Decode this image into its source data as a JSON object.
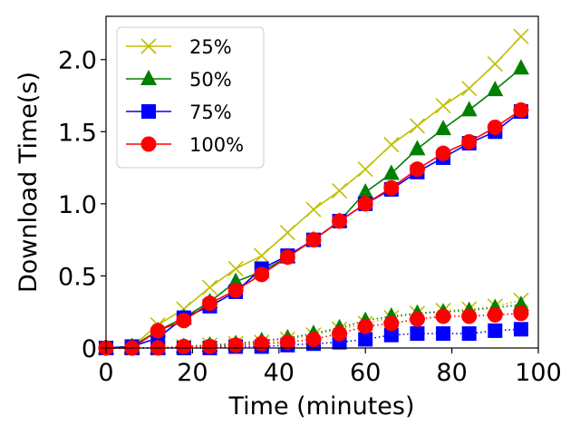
{
  "chart_data": {
    "type": "line",
    "title": "",
    "xlabel": "Time (minutes)",
    "ylabel": "Download Time(s)",
    "xlim": [
      0,
      100
    ],
    "ylim": [
      0,
      2.3
    ],
    "xticks": [
      0,
      20,
      40,
      60,
      80,
      100
    ],
    "xtick_labels": [
      "0",
      "20",
      "40",
      "60",
      "80",
      "100"
    ],
    "yticks": [
      0,
      0.5,
      1.0,
      1.5,
      2.0
    ],
    "ytick_labels": [
      "0",
      "0.5",
      "1.0",
      "1.5",
      "2.0"
    ],
    "grid": false,
    "legend_position": "top-left",
    "x": [
      0,
      6,
      12,
      18,
      24,
      30,
      36,
      42,
      48,
      54,
      60,
      66,
      72,
      78,
      84,
      90,
      96
    ],
    "series": [
      {
        "name": "25%",
        "color": "#bfbf00",
        "marker": "x",
        "linestyle": "solid",
        "values": [
          0,
          0.01,
          0.16,
          0.27,
          0.42,
          0.55,
          0.64,
          0.8,
          0.96,
          1.09,
          1.24,
          1.41,
          1.54,
          1.68,
          1.8,
          1.97,
          2.16
        ]
      },
      {
        "name": "50%",
        "color": "#008000",
        "marker": "triangle",
        "linestyle": "solid",
        "values": [
          0,
          0.01,
          0.12,
          0.21,
          0.32,
          0.46,
          0.53,
          0.63,
          0.75,
          0.88,
          1.08,
          1.21,
          1.38,
          1.52,
          1.65,
          1.79,
          1.94
        ]
      },
      {
        "name": "75%",
        "color": "#0000ff",
        "marker": "square",
        "linestyle": "solid",
        "values": [
          0,
          0.01,
          0.07,
          0.21,
          0.29,
          0.39,
          0.55,
          0.64,
          0.75,
          0.88,
          1.0,
          1.1,
          1.22,
          1.32,
          1.42,
          1.5,
          1.64
        ]
      },
      {
        "name": "100%",
        "color": "#ff0000",
        "marker": "circle",
        "linestyle": "solid",
        "values": [
          0,
          0,
          0.12,
          0.19,
          0.31,
          0.4,
          0.51,
          0.63,
          0.75,
          0.88,
          1.0,
          1.11,
          1.24,
          1.35,
          1.43,
          1.53,
          1.65
        ]
      },
      {
        "name": "25% (dotted)",
        "color": "#bfbf00",
        "marker": "x",
        "linestyle": "dotted",
        "in_legend": false,
        "values": [
          0,
          0,
          0,
          0.01,
          0.02,
          0.03,
          0.04,
          0.06,
          0.09,
          0.13,
          0.17,
          0.21,
          0.24,
          0.26,
          0.27,
          0.29,
          0.33
        ]
      },
      {
        "name": "50% (dotted)",
        "color": "#008000",
        "marker": "triangle",
        "linestyle": "dotted",
        "in_legend": false,
        "values": [
          0,
          0,
          0,
          0.01,
          0.02,
          0.03,
          0.05,
          0.07,
          0.1,
          0.14,
          0.19,
          0.22,
          0.24,
          0.25,
          0.26,
          0.28,
          0.3
        ]
      },
      {
        "name": "75% (dotted)",
        "color": "#0000ff",
        "marker": "square",
        "linestyle": "dotted",
        "in_legend": false,
        "values": [
          0,
          0,
          0,
          0,
          0,
          0.01,
          0.01,
          0.02,
          0.03,
          0.04,
          0.06,
          0.09,
          0.1,
          0.1,
          0.1,
          0.12,
          0.13
        ]
      },
      {
        "name": "100% (dotted)",
        "color": "#ff0000",
        "marker": "circle",
        "linestyle": "dotted",
        "in_legend": false,
        "values": [
          0,
          0,
          0,
          0.01,
          0.01,
          0.02,
          0.03,
          0.04,
          0.06,
          0.1,
          0.15,
          0.17,
          0.2,
          0.22,
          0.22,
          0.23,
          0.24
        ]
      }
    ]
  }
}
